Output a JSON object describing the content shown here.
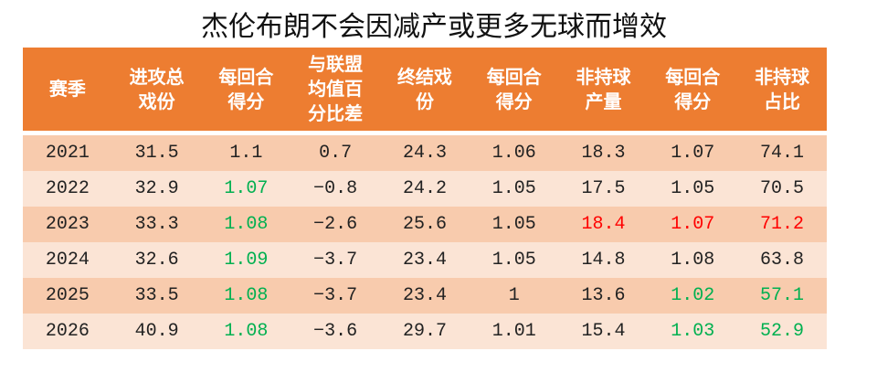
{
  "title": "杰伦布朗不会因减产或更多无球而增效",
  "table": {
    "header": [
      "赛季",
      "进攻总戏份",
      "每回合得分",
      "与联盟均值百分比差",
      "终结戏份",
      "每回合得分",
      "非持球产量",
      "每回合得分",
      "非持球占比"
    ],
    "rows": [
      [
        "2021",
        "31.5",
        "1.1",
        "0.7",
        "24.3",
        "1.06",
        "18.3",
        "1.07",
        "74.1"
      ],
      [
        "2022",
        "32.9",
        "1.07",
        "−0.8",
        "24.2",
        "1.05",
        "17.5",
        "1.05",
        "70.5"
      ],
      [
        "2023",
        "33.3",
        "1.08",
        "−2.6",
        "25.6",
        "1.05",
        "18.4",
        "1.07",
        "71.2"
      ],
      [
        "2024",
        "32.6",
        "1.09",
        "−3.7",
        "23.4",
        "1.05",
        "14.8",
        "1.08",
        "63.8"
      ],
      [
        "2025",
        "33.5",
        "1.08",
        "−3.7",
        "23.4",
        "1",
        "13.6",
        "1.02",
        "57.1"
      ],
      [
        "2026",
        "40.9",
        "1.08",
        "−3.6",
        "29.7",
        "1.01",
        "15.4",
        "1.03",
        "52.9"
      ]
    ]
  }
}
